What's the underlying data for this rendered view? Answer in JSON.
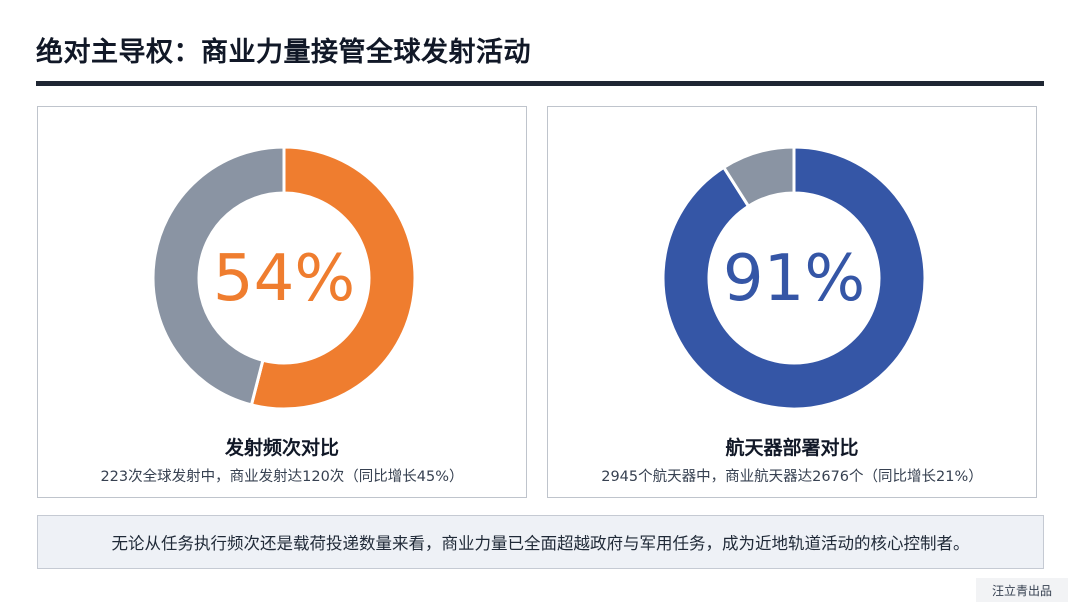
{
  "page": {
    "title": "绝对主导权：商业力量接管全球发射活动",
    "summary": "无论从任务执行频次还是载荷投递数量来看，商业力量已全面超越政府与军用任务，成为近地轨道活动的核心控制者。",
    "credit": "汪立青出品"
  },
  "colors": {
    "orange": "#ef7d2f",
    "blue": "#3556a6",
    "gray": "#8a94a3",
    "dark": "#1f2633"
  },
  "chart_data": [
    {
      "type": "pie",
      "title": "发射频次对比",
      "subtitle": "223次全球发射中，商业发射达120次（同比增长45%）",
      "center_label": "54%",
      "slices": [
        {
          "value": 54,
          "color": "#ef7d2f"
        },
        {
          "value": 46,
          "color": "#8a94a3"
        }
      ]
    },
    {
      "type": "pie",
      "title": "航天器部署对比",
      "subtitle": "2945个航天器中，商业航天器达2676个（同比增长21%）",
      "center_label": "91%",
      "slices": [
        {
          "value": 91,
          "color": "#3556a6"
        },
        {
          "value": 9,
          "color": "#8a94a3"
        }
      ]
    }
  ]
}
